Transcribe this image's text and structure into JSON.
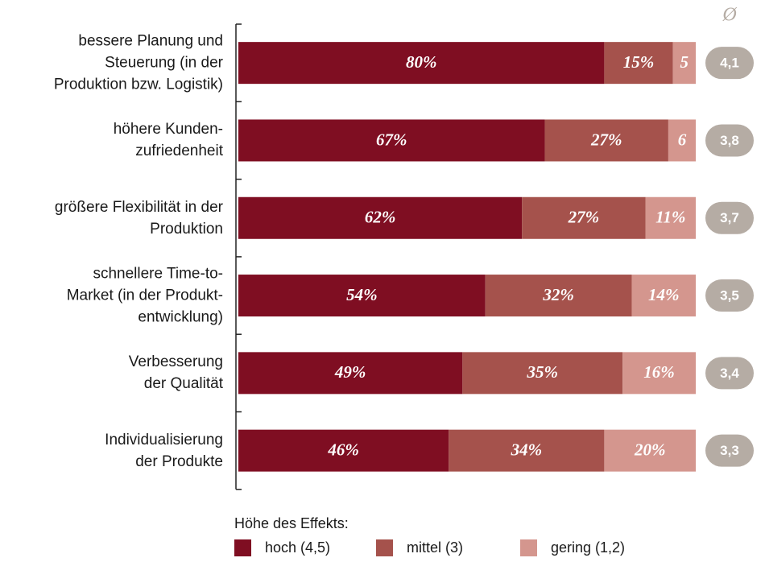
{
  "chart_data": {
    "type": "stacked-barh",
    "categories": [
      "bessere Planung und\nSteuerung (in der\nProduktion bzw. Logistik)",
      "höhere Kunden-\nzufriedenheit",
      "größere Flexibilität in der\nProduktion",
      "schnellere Time-to-\nMarket (in der Produkt-\nentwicklung)",
      "Verbesserung\nder Qualität",
      "Individualisierung\nder Produkte"
    ],
    "series": [
      {
        "name": "hoch (4,5)",
        "color": "#7f0e22",
        "values": [
          80,
          67,
          62,
          54,
          49,
          46
        ],
        "value_labels": [
          "80%",
          "67%",
          "62%",
          "54%",
          "49%",
          "46%"
        ]
      },
      {
        "name": "mittel (3)",
        "color": "#a5524c",
        "values": [
          15,
          27,
          27,
          32,
          35,
          34
        ],
        "value_labels": [
          "15%",
          "27%",
          "27%",
          "32%",
          "35%",
          "34%"
        ]
      },
      {
        "name": "gering (1,2)",
        "color": "#d4968e",
        "values": [
          5,
          6,
          11,
          14,
          16,
          20
        ],
        "value_labels": [
          "5",
          "6",
          "11%",
          "14%",
          "16%",
          "20%"
        ]
      }
    ],
    "averages": {
      "symbol": "Ø",
      "color": "#b5aca4",
      "values": [
        4.1,
        3.8,
        3.7,
        3.5,
        3.4,
        3.3
      ],
      "value_labels": [
        "4,1",
        "3,8",
        "3,7",
        "3,5",
        "3,4",
        "3,3"
      ]
    },
    "legend_title": "Höhe des Effekts:",
    "xlim": [
      0,
      100
    ]
  }
}
